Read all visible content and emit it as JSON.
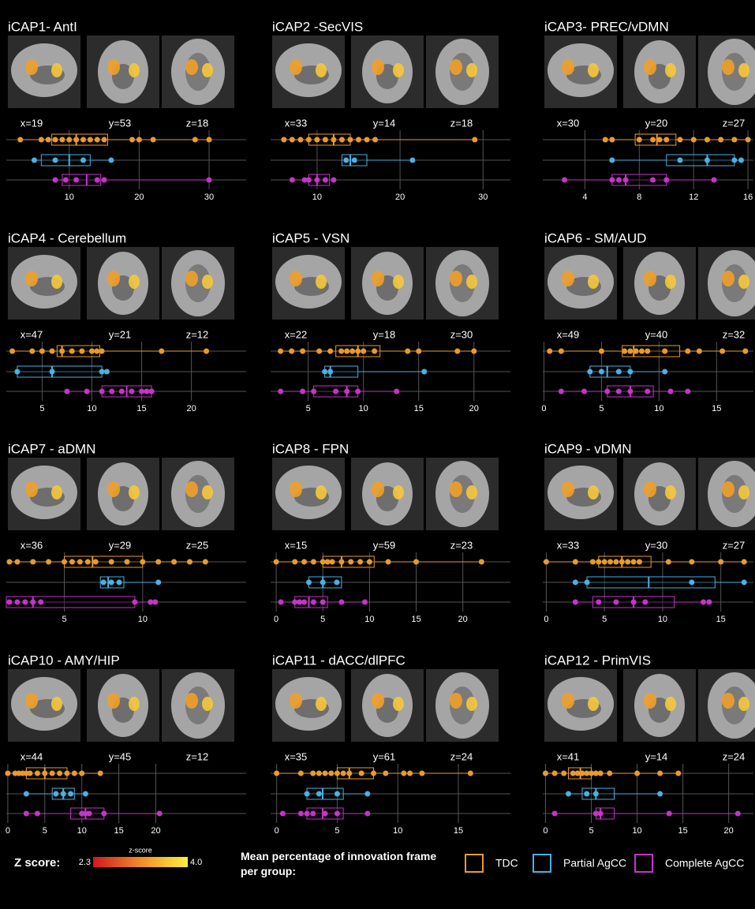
{
  "chart_data": [
    {
      "type": "box",
      "title": "iCAP1- AntI",
      "slices": [
        "x=19",
        "y=53",
        "z=18"
      ],
      "xlim": [
        1,
        35.3
      ],
      "xticks": [
        10,
        20,
        30
      ],
      "grid": true,
      "series": [
        {
          "values": [
            3,
            6,
            7,
            8,
            9,
            10,
            11,
            12,
            13,
            14,
            15,
            19,
            20,
            22,
            28,
            30
          ],
          "q1": 7.5,
          "median": 11,
          "q3": 15.5
        },
        {
          "values": [
            5,
            8,
            12,
            16
          ],
          "q1": 6,
          "median": 10,
          "q3": 13
        },
        {
          "values": [
            8,
            9.5,
            11,
            14,
            15,
            30
          ],
          "q1": 9,
          "median": 12.5,
          "q3": 14.5
        }
      ]
    },
    {
      "type": "box",
      "title": "iCAP2 -SecVIS",
      "slices": [
        "x=33",
        "y=14",
        "z=18"
      ],
      "xlim": [
        4.4,
        33.3
      ],
      "xticks": [
        10,
        20,
        30
      ],
      "grid": true,
      "series": [
        {
          "values": [
            6,
            7,
            8,
            9,
            10,
            11,
            12,
            13,
            14,
            15,
            16,
            17,
            29
          ],
          "q1": 9,
          "median": 12,
          "q3": 14
        },
        {
          "values": [
            13.5,
            14.5,
            21.5
          ],
          "q1": 13,
          "median": 14,
          "q3": 16
        },
        {
          "values": [
            7,
            8.5,
            9,
            10,
            11,
            12
          ],
          "q1": 9,
          "median": 10,
          "q3": 11.5
        }
      ]
    },
    {
      "type": "box",
      "title": "iCAP3- PREC/vDMN",
      "slices": [
        "x=30",
        "y=20",
        "z=27"
      ],
      "xlim": [
        0.9,
        16.4
      ],
      "xticks": [
        4,
        8,
        12,
        16
      ],
      "grid": true,
      "series": [
        {
          "values": [
            5.5,
            6,
            8,
            9,
            9.5,
            10,
            11,
            12,
            13,
            14,
            15,
            16
          ],
          "q1": 7.7,
          "median": 9.3,
          "q3": 10.7
        },
        {
          "values": [
            6,
            11,
            13,
            15,
            15.5
          ],
          "q1": 10,
          "median": 13,
          "q3": 15
        },
        {
          "values": [
            2.5,
            6,
            6.5,
            7,
            9,
            10,
            13.5
          ],
          "q1": 6,
          "median": 7,
          "q3": 10
        }
      ]
    },
    {
      "type": "box",
      "title": "iCAP4 - Cerebellum",
      "slices": [
        "x=47",
        "y=21",
        "z=12"
      ],
      "xlim": [
        1.4,
        25.5
      ],
      "xticks": [
        5,
        10,
        15,
        20
      ],
      "grid": true,
      "series": [
        {
          "values": [
            2,
            4,
            5,
            6,
            7,
            8,
            9,
            10,
            10.5,
            11,
            17,
            21.5
          ],
          "q1": 6.5,
          "median": 7,
          "q3": 10.8
        },
        {
          "values": [
            2.5,
            6,
            11,
            11.5
          ],
          "q1": 2.5,
          "median": 6,
          "q3": 11
        },
        {
          "values": [
            7.5,
            9.5,
            11,
            12,
            13,
            14,
            15,
            15.5,
            16
          ],
          "q1": 11,
          "median": 13.5,
          "q3": 16
        }
      ]
    },
    {
      "type": "box",
      "title": "iCAP5 - VSN",
      "slices": [
        "x=22",
        "y=18",
        "z=30"
      ],
      "xlim": [
        1.6,
        23.3
      ],
      "xticks": [
        5,
        10,
        15,
        20
      ],
      "grid": true,
      "series": [
        {
          "values": [
            2.5,
            3.5,
            4.5,
            6,
            7,
            8,
            8.5,
            9,
            9.5,
            10,
            11,
            14,
            15,
            18.5,
            20
          ],
          "q1": 7.5,
          "median": 9.5,
          "q3": 11.5
        },
        {
          "values": [
            6.5,
            7,
            15.5
          ],
          "q1": 6.5,
          "median": 7,
          "q3": 9.5
        },
        {
          "values": [
            2.5,
            4.5,
            5.5,
            7.5,
            8.5,
            9.5,
            13
          ],
          "q1": 5.5,
          "median": 8.5,
          "q3": 9.5
        }
      ]
    },
    {
      "type": "box",
      "title": "iCAP6 - SM/AUD",
      "slices": [
        "x=49",
        "y=40",
        "z=32"
      ],
      "xlim": [
        -0.1,
        18.2
      ],
      "xticks": [
        0,
        5,
        10,
        15
      ],
      "grid": true,
      "series": [
        {
          "values": [
            0.5,
            1.5,
            5,
            7,
            7.5,
            8,
            8.5,
            9,
            10.5,
            12.5,
            13.5,
            15.5,
            17.5
          ],
          "q1": 6.8,
          "median": 7.8,
          "q3": 11.8
        },
        {
          "values": [
            4,
            5,
            6.5,
            7.5,
            10.5
          ],
          "q1": 4,
          "median": 5.5,
          "q3": 7.5
        },
        {
          "values": [
            1.5,
            3.5,
            5.5,
            6.5,
            7.5,
            9,
            11,
            12.5
          ],
          "q1": 5.5,
          "median": 7.5,
          "q3": 9.5
        }
      ]
    },
    {
      "type": "box",
      "title": "iCAP7 - aDMN",
      "slices": [
        "x=36",
        "y=29",
        "z=25"
      ],
      "xlim": [
        1.3,
        16.6
      ],
      "xticks": [
        5,
        10
      ],
      "grid": true,
      "series": [
        {
          "values": [
            1.5,
            2,
            3,
            4,
            5,
            5.5,
            6,
            6.5,
            7,
            8,
            9,
            10,
            11,
            12,
            13,
            14
          ],
          "q1": 5,
          "median": 6.8,
          "q3": 10
        },
        {
          "values": [
            7.5,
            8,
            8.5,
            11
          ],
          "q1": 7.3,
          "median": 7.8,
          "q3": 8.8
        },
        {
          "values": [
            1.5,
            2,
            2.5,
            3,
            3.5,
            9.5,
            10.5,
            10.8
          ],
          "q1": 1.3,
          "median": 3,
          "q3": 9.5
        }
      ]
    },
    {
      "type": "box",
      "title": "iCAP8 - FPN",
      "slices": [
        "x=15",
        "y=59",
        "z=23"
      ],
      "xlim": [
        -0.6,
        25.1
      ],
      "xticks": [
        0,
        5,
        10,
        15,
        20
      ],
      "grid": true,
      "series": [
        {
          "values": [
            0,
            2,
            3,
            4,
            5,
            5.5,
            6,
            7,
            8,
            9,
            10,
            12,
            15,
            22
          ],
          "q1": 5,
          "median": 7,
          "q3": 10.5
        },
        {
          "values": [
            3.5,
            5,
            6.5
          ],
          "q1": 3.5,
          "median": 5,
          "q3": 7
        },
        {
          "values": [
            0.5,
            2,
            2.5,
            3,
            4,
            5,
            7,
            9.5
          ],
          "q1": 2,
          "median": 3.5,
          "q3": 5.5
        }
      ]
    },
    {
      "type": "box",
      "title": "iCAP9 - vDMN",
      "slices": [
        "x=33",
        "y=30",
        "z=27"
      ],
      "xlim": [
        -0.3,
        17.8
      ],
      "xticks": [
        0,
        5,
        10,
        15
      ],
      "grid": true,
      "series": [
        {
          "values": [
            0,
            2.5,
            4,
            4.5,
            5,
            5.5,
            6,
            6.5,
            7,
            7.5,
            8,
            10.5,
            12.5,
            15,
            17
          ],
          "q1": 4.5,
          "median": 6.5,
          "q3": 9
        },
        {
          "values": [
            2.5,
            3.5,
            12.5,
            17
          ],
          "q1": 3.5,
          "median": 8.8,
          "q3": 14.5
        },
        {
          "values": [
            2.5,
            4.5,
            6,
            7.5,
            8.5,
            13.5,
            14
          ],
          "q1": 4,
          "median": 7.5,
          "q3": 11
        }
      ]
    },
    {
      "type": "box",
      "title": "iCAP10 - AMY/HIP",
      "slices": [
        "x=44",
        "y=45",
        "z=12"
      ],
      "xlim": [
        -0.2,
        32.2
      ],
      "xticks": [
        0,
        5,
        10,
        15,
        20
      ],
      "grid": true,
      "series": [
        {
          "values": [
            0,
            1,
            1.5,
            2,
            2.5,
            3,
            4,
            5,
            6,
            7,
            8,
            9,
            10,
            12.5
          ],
          "q1": 2.5,
          "median": 5,
          "q3": 8
        },
        {
          "values": [
            2.5,
            6.5,
            7.5,
            8.5,
            10.5
          ],
          "q1": 6,
          "median": 7.5,
          "q3": 9
        },
        {
          "values": [
            2.5,
            4,
            10,
            10.5,
            11,
            13,
            20.5
          ],
          "q1": 8.5,
          "median": 10.5,
          "q3": 13
        }
      ]
    },
    {
      "type": "box",
      "title": "iCAP11 - dACC/dlPFC",
      "slices": [
        "x=35",
        "y=61",
        "z=24"
      ],
      "xlim": [
        -0.5,
        19.3
      ],
      "xticks": [
        0,
        5,
        10,
        15
      ],
      "grid": true,
      "series": [
        {
          "values": [
            0,
            2,
            3,
            3.5,
            4,
            4.5,
            5,
            5.5,
            6,
            7,
            8,
            9,
            10.5,
            11,
            12,
            16
          ],
          "q1": 5,
          "median": 6,
          "q3": 8
        },
        {
          "values": [
            2.5,
            3.5,
            5,
            7.5
          ],
          "q1": 2.5,
          "median": 3.8,
          "q3": 5.5
        },
        {
          "values": [
            0.5,
            2,
            2.5,
            3,
            4,
            5,
            7.5
          ],
          "q1": 2.5,
          "median": 3.8,
          "q3": 5.5
        }
      ]
    },
    {
      "type": "box",
      "title": "iCAP12 - PrimVIS",
      "slices": [
        "x=41",
        "y=14",
        "z=24"
      ],
      "xlim": [
        -0.3,
        22.7
      ],
      "xticks": [
        0,
        5,
        10,
        15,
        20
      ],
      "grid": true,
      "series": [
        {
          "values": [
            0,
            1,
            2,
            3,
            3.5,
            4,
            4.5,
            5,
            5.5,
            6,
            7,
            10,
            12.5,
            14.5
          ],
          "q1": 2.5,
          "median": 3.8,
          "q3": 5
        },
        {
          "values": [
            2.5,
            4.5,
            5.5,
            12.5
          ],
          "q1": 4,
          "median": 5.5,
          "q3": 7.5
        },
        {
          "values": [
            1,
            5.5,
            6,
            13.5,
            21
          ],
          "q1": 5.5,
          "median": 6,
          "q3": 7.5
        }
      ]
    }
  ],
  "colorbar": {
    "label": "Z score:",
    "title": "z-score",
    "colors": [
      "#d0181c",
      "#f08c28",
      "#ffee40"
    ],
    "ticks": [
      2.3,
      {
        "value": 4,
        "label": "4.0"
      }
    ]
  },
  "legend": {
    "title": "Mean percentage of innovation frame per group:",
    "items": [
      {
        "name": "TDC",
        "color": "#e89b2c"
      },
      {
        "name": "Partial AgCC",
        "color": "#4cb0e0"
      },
      {
        "name": "Complete AgCC",
        "color": "#c534c8"
      }
    ]
  }
}
